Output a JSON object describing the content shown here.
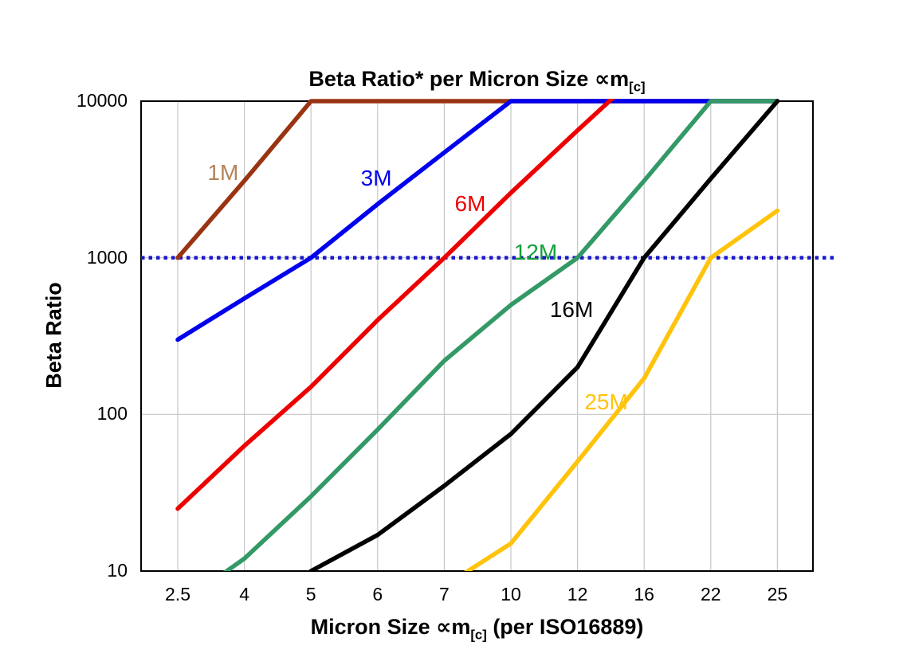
{
  "chart_data": {
    "type": "line",
    "title": {
      "prefix": "Beta Ratio* per Micron Size ∝m",
      "subscript": "[c]"
    },
    "xlabel": {
      "prefix": "Micron Size ∝m",
      "subscript": "[c]",
      "suffix": " (per ISO16889)"
    },
    "ylabel": "Beta Ratio",
    "x_categories": [
      "2.5",
      "4",
      "5",
      "6",
      "7",
      "10",
      "12",
      "16",
      "22",
      "25"
    ],
    "y_axis": {
      "scale": "log",
      "min": 10,
      "max": 10000,
      "tick_labels": [
        "10",
        "100",
        "1000",
        "10000"
      ]
    },
    "grid": {
      "show": true,
      "color": "#C6C6C6",
      "h_lines_at": [
        100,
        1000
      ]
    },
    "plot_border_color": "#000000",
    "reference_line": {
      "value": 1000,
      "style": "dotted",
      "color": "#1818CC"
    },
    "series": [
      {
        "name": "1M",
        "line_color": "#993311",
        "label_color": "#B28358",
        "values": [
          1000,
          3100,
          10000,
          10000,
          10000,
          10000,
          10000,
          10000,
          10000,
          10000
        ],
        "label_anchor": {
          "x_index": 0.68,
          "value": 3500
        }
      },
      {
        "name": "3M",
        "line_color": "#0000EE",
        "label_color": "#0000EE",
        "values": [
          300,
          550,
          1000,
          2200,
          4700,
          10000,
          10000,
          10000,
          10000,
          10000
        ],
        "label_anchor": {
          "x_index": 2.98,
          "value": 3200
        }
      },
      {
        "name": "6M",
        "line_color": "#EE0000",
        "label_color": "#EE0000",
        "values": [
          25,
          63,
          150,
          400,
          1000,
          2600,
          6500,
          16000,
          null,
          null
        ],
        "label_anchor": {
          "x_index": 4.39,
          "value": 2200
        }
      },
      {
        "name": "12M",
        "line_color": "#339966",
        "label_color": "#13A03C",
        "values": [
          6,
          12,
          30,
          80,
          220,
          500,
          1000,
          3100,
          10000,
          10000
        ],
        "label_anchor": {
          "x_index": 5.37,
          "value": 1080
        }
      },
      {
        "name": "16M",
        "line_color": "#000000",
        "label_color": "#000000",
        "values": [
          null,
          null,
          10,
          17,
          35,
          75,
          200,
          1000,
          3200,
          10000
        ],
        "label_anchor": {
          "x_index": 5.91,
          "value": 465
        }
      },
      {
        "name": "25M",
        "line_color": "#FFC30B",
        "label_color": "#FFC30B",
        "values": [
          null,
          null,
          null,
          null,
          8,
          15,
          50,
          170,
          1000,
          2000
        ],
        "label_anchor": {
          "x_index": 6.43,
          "value": 120
        }
      }
    ]
  }
}
